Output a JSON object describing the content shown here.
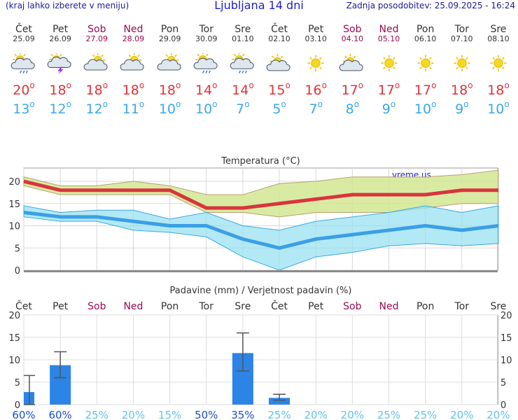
{
  "header": {
    "left_note": "(kraj lahko izberete v meniju)",
    "title": "Ljubljana 14 dni",
    "updated": "Zadnja posodobitev: 25.09.2025 - 16:24"
  },
  "days": [
    {
      "name": "Čet",
      "date": "25.09",
      "weekend": false,
      "icon": "sun-cloud-rain-icon",
      "max": "20",
      "min": "13"
    },
    {
      "name": "Pet",
      "date": "26.09",
      "weekend": false,
      "icon": "sun-cloud-thunder-icon",
      "max": "18",
      "min": "12"
    },
    {
      "name": "Sob",
      "date": "27.09",
      "weekend": true,
      "icon": "sun-cloud-icon",
      "max": "18",
      "min": "12"
    },
    {
      "name": "Ned",
      "date": "28.09",
      "weekend": true,
      "icon": "sun-cloud-icon",
      "max": "18",
      "min": "11"
    },
    {
      "name": "Pon",
      "date": "29.09",
      "weekend": false,
      "icon": "sun-cloud-icon",
      "max": "18",
      "min": "10"
    },
    {
      "name": "Tor",
      "date": "30.09",
      "weekend": false,
      "icon": "sun-cloud-rain-icon",
      "max": "14",
      "min": "10"
    },
    {
      "name": "Sre",
      "date": "01.10",
      "weekend": false,
      "icon": "sun-cloud-rain-icon",
      "max": "14",
      "min": "7"
    },
    {
      "name": "Čet",
      "date": "02.10",
      "weekend": false,
      "icon": "sun-small-cloud-icon",
      "max": "15",
      "min": "5"
    },
    {
      "name": "Pet",
      "date": "03.10",
      "weekend": false,
      "icon": "sun-icon",
      "max": "16",
      "min": "7"
    },
    {
      "name": "Sob",
      "date": "04.10",
      "weekend": true,
      "icon": "sun-small-cloud-icon",
      "max": "17",
      "min": "8"
    },
    {
      "name": "Ned",
      "date": "05.10",
      "weekend": true,
      "icon": "sun-icon",
      "max": "17",
      "min": "9"
    },
    {
      "name": "Pon",
      "date": "06.10",
      "weekend": false,
      "icon": "sun-icon",
      "max": "17",
      "min": "10"
    },
    {
      "name": "Tor",
      "date": "07.10",
      "weekend": false,
      "icon": "sun-icon",
      "max": "18",
      "min": "9"
    },
    {
      "name": "Sre",
      "date": "08.10",
      "weekend": false,
      "icon": "sun-icon",
      "max": "18",
      "min": "10"
    }
  ],
  "degree_symbol": "o",
  "colors": {
    "max_text": "#e0323a",
    "min_text": "#3aa8e8",
    "max_line": "#d9343e",
    "max_band": "#d2e892",
    "min_line": "#3a9fe6",
    "min_band": "#99e2f0",
    "bar": "#2b84e6",
    "weekend": "#9b0a4f"
  },
  "chart_data": [
    {
      "type": "line",
      "title": "Temperatura (°C)",
      "watermark": "vreme.us",
      "categories": [
        "25.09",
        "26.09",
        "27.09",
        "28.09",
        "29.09",
        "30.09",
        "01.10",
        "02.10",
        "03.10",
        "04.10",
        "05.10",
        "06.10",
        "07.10",
        "08.10"
      ],
      "ylim": [
        0,
        23
      ],
      "yticks": [
        "0",
        "5",
        "10",
        "15",
        "20"
      ],
      "grid": true,
      "series": [
        {
          "values": [
            20,
            18,
            18,
            18,
            18,
            14,
            14,
            15,
            16,
            17,
            17,
            17,
            18,
            18
          ],
          "band_low": [
            19,
            17,
            17,
            17,
            17,
            13,
            13,
            12,
            13,
            13,
            13,
            14,
            15,
            15
          ],
          "band_high": [
            21,
            19,
            19,
            20,
            19,
            17,
            17,
            19.5,
            20,
            21,
            21,
            21,
            21.5,
            22.5
          ]
        },
        {
          "values": [
            13,
            12,
            12,
            11,
            10,
            10,
            7,
            5,
            7,
            8,
            9,
            10,
            9,
            10
          ],
          "band_low": [
            12,
            11,
            11,
            9,
            8.5,
            7.5,
            3,
            0,
            3,
            4,
            5.5,
            6,
            5.5,
            6
          ],
          "band_high": [
            14.5,
            13,
            13.5,
            13.5,
            11.5,
            13,
            10,
            9,
            11,
            12,
            13,
            14.5,
            13,
            14.5
          ]
        }
      ]
    },
    {
      "type": "bar",
      "title": "Padavine (mm) / Verjetnost padavin (%)",
      "categories": [
        "Čet",
        "Pet",
        "Sob",
        "Ned",
        "Pon",
        "Tor",
        "Sre",
        "Čet",
        "Pet",
        "Sob",
        "Ned",
        "Pon",
        "Tor",
        "Sre"
      ],
      "weekend": [
        false,
        false,
        true,
        true,
        false,
        false,
        false,
        false,
        false,
        true,
        true,
        false,
        false,
        false
      ],
      "ylim": [
        0,
        20
      ],
      "yticks": [
        "0",
        "5",
        "10",
        "15",
        "20"
      ],
      "values": [
        2.8,
        8.8,
        0,
        0,
        0,
        0,
        11.5,
        1.5,
        0,
        0,
        0,
        0,
        0,
        0
      ],
      "err_low": [
        0,
        6,
        0,
        0,
        0,
        0,
        7.5,
        1.0,
        0,
        0,
        0,
        0,
        0,
        0
      ],
      "err_high": [
        6.5,
        11.8,
        0,
        0,
        0,
        0,
        16,
        2.3,
        0,
        0,
        0,
        0,
        0,
        0
      ],
      "probability": [
        "60%",
        "60%",
        "25%",
        "20%",
        "15%",
        "50%",
        "35%",
        "25%",
        "20%",
        "20%",
        "25%",
        "25%",
        "20%",
        "20%"
      ],
      "probability_high": [
        true,
        true,
        false,
        false,
        false,
        true,
        true,
        false,
        false,
        false,
        false,
        false,
        false,
        false
      ]
    }
  ]
}
